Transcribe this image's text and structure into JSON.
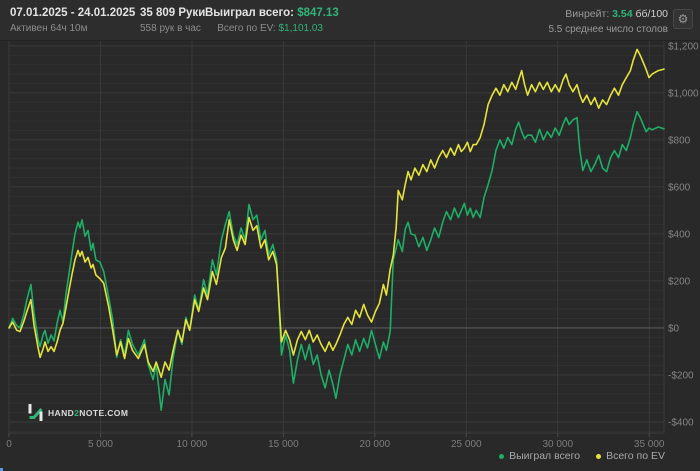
{
  "header": {
    "date_range": "07.01.2025 - 24.01.2025",
    "active_time": "Активен 64ч 10м",
    "hands": "35 809 Руки",
    "hands_per_hour": "558 рук в час",
    "won_label": "Выиграл всего:",
    "won_value": "$847.13",
    "ev_label": "Всего по EV:",
    "ev_value": "$1,101.03",
    "winrate_label": "Винрейт:",
    "winrate_value": "3.54",
    "winrate_unit": "бб/100",
    "avg_tables": "5.5 среднее число столов",
    "settings_glyph": "⚙"
  },
  "logo": {
    "part1": "HAND",
    "part2": "2",
    "part3": "NOTE.COM"
  },
  "legend": [
    {
      "label": "Выиграл всего",
      "color": "#1eae67"
    },
    {
      "label": "Всего по EV",
      "color": "#e6e33c"
    }
  ],
  "colors": {
    "background": "#292929",
    "header_background": "#2d2d2d",
    "grid_minor": "#303030",
    "grid_major": "#3a3a3a",
    "zero_line": "#575757",
    "axis_label": "#858585",
    "accent_green": "#2fb479",
    "series_win": "#1eae67",
    "series_ev": "#e6e33c"
  },
  "chart_data": {
    "type": "line",
    "title": "",
    "xlabel": "hands",
    "ylabel": "winnings ($)",
    "grid": true,
    "legend_position": "bottom-right",
    "xlim": [
      0,
      35809
    ],
    "ylim": [
      -447,
      1225
    ],
    "x_ticks": [
      {
        "v": 0,
        "label": "0"
      },
      {
        "v": 5000,
        "label": "5 000"
      },
      {
        "v": 10000,
        "label": "10 000"
      },
      {
        "v": 15000,
        "label": "15 000"
      },
      {
        "v": 20000,
        "label": "20 000"
      },
      {
        "v": 25000,
        "label": "25 000"
      },
      {
        "v": 30000,
        "label": "30 000"
      },
      {
        "v": 35000,
        "label": "35 000"
      }
    ],
    "y_ticks": [
      {
        "v": 1200,
        "label": "$1,200"
      },
      {
        "v": 1000,
        "label": "$1,000"
      },
      {
        "v": 800,
        "label": "$800"
      },
      {
        "v": 600,
        "label": "$600"
      },
      {
        "v": 400,
        "label": "$400"
      },
      {
        "v": 200,
        "label": "$200"
      },
      {
        "v": 0,
        "label": "$0"
      },
      {
        "v": -200,
        "label": "-$200"
      },
      {
        "v": -400,
        "label": "-$400"
      }
    ],
    "series": [
      {
        "name": "Выиграл всего",
        "color": "#1eae67",
        "final_value": 847.13
      },
      {
        "name": "Всего по EV",
        "color": "#e6e33c",
        "final_value": 1101.03
      }
    ],
    "points_format": [
      "hands",
      "win_total",
      "ev_total"
    ],
    "points": [
      [
        0,
        0,
        0
      ],
      [
        200,
        40,
        25
      ],
      [
        420,
        10,
        -10
      ],
      [
        600,
        0,
        -15
      ],
      [
        820,
        60,
        30
      ],
      [
        980,
        120,
        70
      ],
      [
        1200,
        185,
        120
      ],
      [
        1370,
        60,
        10
      ],
      [
        1590,
        -50,
        -85
      ],
      [
        1700,
        -80,
        -125
      ],
      [
        1860,
        -30,
        -90
      ],
      [
        1970,
        -10,
        -60
      ],
      [
        2130,
        -65,
        -100
      ],
      [
        2300,
        -30,
        -80
      ],
      [
        2460,
        -55,
        -100
      ],
      [
        2630,
        20,
        -60
      ],
      [
        2790,
        75,
        -10
      ],
      [
        2950,
        25,
        20
      ],
      [
        3120,
        150,
        90
      ],
      [
        3280,
        230,
        160
      ],
      [
        3450,
        320,
        230
      ],
      [
        3610,
        400,
        290
      ],
      [
        3770,
        450,
        330
      ],
      [
        3880,
        425,
        305
      ],
      [
        3990,
        460,
        325
      ],
      [
        4160,
        390,
        280
      ],
      [
        4320,
        415,
        300
      ],
      [
        4490,
        330,
        255
      ],
      [
        4590,
        360,
        270
      ],
      [
        4750,
        290,
        225
      ],
      [
        4970,
        280,
        210
      ],
      [
        5180,
        240,
        190
      ],
      [
        5450,
        130,
        90
      ],
      [
        5670,
        35,
        -10
      ],
      [
        5890,
        -125,
        -115
      ],
      [
        6100,
        -50,
        -60
      ],
      [
        6320,
        -115,
        -130
      ],
      [
        6530,
        -10,
        -45
      ],
      [
        6750,
        -70,
        -95
      ],
      [
        7070,
        -115,
        -130
      ],
      [
        7400,
        -50,
        -70
      ],
      [
        7610,
        -155,
        -145
      ],
      [
        7880,
        -220,
        -185
      ],
      [
        8050,
        -155,
        -145
      ],
      [
        8320,
        -350,
        -210
      ],
      [
        8530,
        -220,
        -145
      ],
      [
        8750,
        -285,
        -180
      ],
      [
        8960,
        -135,
        -100
      ],
      [
        9230,
        -10,
        -10
      ],
      [
        9450,
        -70,
        -60
      ],
      [
        9670,
        45,
        35
      ],
      [
        9880,
        -10,
        -10
      ],
      [
        10150,
        140,
        120
      ],
      [
        10370,
        75,
        70
      ],
      [
        10640,
        205,
        170
      ],
      [
        10850,
        140,
        120
      ],
      [
        11120,
        290,
        240
      ],
      [
        11340,
        225,
        185
      ],
      [
        11610,
        375,
        300
      ],
      [
        11830,
        440,
        340
      ],
      [
        12040,
        495,
        460
      ],
      [
        12260,
        395,
        375
      ],
      [
        12470,
        355,
        330
      ],
      [
        12690,
        425,
        395
      ],
      [
        12910,
        375,
        355
      ],
      [
        13120,
        525,
        470
      ],
      [
        13340,
        460,
        415
      ],
      [
        13550,
        480,
        435
      ],
      [
        13770,
        375,
        340
      ],
      [
        13990,
        415,
        375
      ],
      [
        14200,
        310,
        290
      ],
      [
        14420,
        355,
        325
      ],
      [
        14630,
        290,
        270
      ],
      [
        14900,
        -115,
        -60
      ],
      [
        15120,
        -30,
        -10
      ],
      [
        15340,
        -95,
        -50
      ],
      [
        15550,
        -235,
        -115
      ],
      [
        15770,
        -135,
        -50
      ],
      [
        15980,
        -70,
        -15
      ],
      [
        16200,
        -135,
        -50
      ],
      [
        16420,
        -70,
        -10
      ],
      [
        16630,
        -155,
        -60
      ],
      [
        16850,
        -115,
        -30
      ],
      [
        17060,
        -200,
        -70
      ],
      [
        17280,
        -255,
        -100
      ],
      [
        17500,
        -180,
        -60
      ],
      [
        17710,
        -240,
        -95
      ],
      [
        17870,
        -300,
        -70
      ],
      [
        18090,
        -200,
        -30
      ],
      [
        18310,
        -135,
        15
      ],
      [
        18520,
        -70,
        45
      ],
      [
        18740,
        -115,
        15
      ],
      [
        18950,
        -50,
        75
      ],
      [
        19170,
        -100,
        45
      ],
      [
        19390,
        -45,
        100
      ],
      [
        19600,
        -85,
        55
      ],
      [
        19820,
        -10,
        25
      ],
      [
        20030,
        -70,
        70
      ],
      [
        20250,
        -130,
        105
      ],
      [
        20470,
        -60,
        185
      ],
      [
        20630,
        -95,
        140
      ],
      [
        20840,
        -15,
        250
      ],
      [
        21010,
        290,
        310
      ],
      [
        21170,
        340,
        430
      ],
      [
        21280,
        375,
        585
      ],
      [
        21500,
        325,
        545
      ],
      [
        21660,
        420,
        610
      ],
      [
        21820,
        450,
        665
      ],
      [
        21980,
        400,
        630
      ],
      [
        22190,
        395,
        680
      ],
      [
        22410,
        345,
        650
      ],
      [
        22630,
        385,
        695
      ],
      [
        22840,
        330,
        665
      ],
      [
        23060,
        375,
        715
      ],
      [
        23270,
        425,
        680
      ],
      [
        23490,
        385,
        725
      ],
      [
        23710,
        450,
        755
      ],
      [
        23920,
        495,
        725
      ],
      [
        24140,
        460,
        765
      ],
      [
        24350,
        510,
        735
      ],
      [
        24570,
        470,
        780
      ],
      [
        24730,
        500,
        750
      ],
      [
        24890,
        530,
        765
      ],
      [
        25060,
        480,
        790
      ],
      [
        25220,
        510,
        750
      ],
      [
        25380,
        470,
        780
      ],
      [
        25540,
        500,
        780
      ],
      [
        25760,
        470,
        810
      ],
      [
        25970,
        555,
        865
      ],
      [
        26190,
        610,
        950
      ],
      [
        26410,
        670,
        990
      ],
      [
        26620,
        755,
        1020
      ],
      [
        26840,
        800,
        990
      ],
      [
        27050,
        765,
        1035
      ],
      [
        27270,
        810,
        1005
      ],
      [
        27490,
        780,
        1045
      ],
      [
        27700,
        845,
        1015
      ],
      [
        27860,
        875,
        1055
      ],
      [
        28030,
        835,
        1095
      ],
      [
        28190,
        805,
        1035
      ],
      [
        28350,
        820,
        990
      ],
      [
        28570,
        820,
        1035
      ],
      [
        28780,
        790,
        1005
      ],
      [
        29000,
        845,
        1045
      ],
      [
        29210,
        800,
        1015
      ],
      [
        29430,
        835,
        1045
      ],
      [
        29650,
        810,
        1005
      ],
      [
        29860,
        850,
        1035
      ],
      [
        30080,
        820,
        1005
      ],
      [
        30290,
        865,
        1055
      ],
      [
        30450,
        895,
        1080
      ],
      [
        30620,
        865,
        1035
      ],
      [
        30830,
        885,
        1005
      ],
      [
        31050,
        895,
        1035
      ],
      [
        31210,
        755,
        990
      ],
      [
        31370,
        670,
        960
      ],
      [
        31590,
        715,
        990
      ],
      [
        31810,
        665,
        950
      ],
      [
        32020,
        695,
        980
      ],
      [
        32240,
        735,
        935
      ],
      [
        32450,
        680,
        970
      ],
      [
        32670,
        665,
        950
      ],
      [
        32890,
        725,
        990
      ],
      [
        33100,
        755,
        1020
      ],
      [
        33320,
        725,
        990
      ],
      [
        33530,
        780,
        1035
      ],
      [
        33750,
        755,
        1065
      ],
      [
        33970,
        810,
        1095
      ],
      [
        34130,
        865,
        1140
      ],
      [
        34340,
        920,
        1185
      ],
      [
        34510,
        895,
        1160
      ],
      [
        34670,
        865,
        1130
      ],
      [
        34830,
        835,
        1100
      ],
      [
        34990,
        850,
        1065
      ],
      [
        35160,
        843,
        1080
      ],
      [
        35500,
        855,
        1095
      ],
      [
        35809,
        847.13,
        1101.03
      ]
    ]
  }
}
